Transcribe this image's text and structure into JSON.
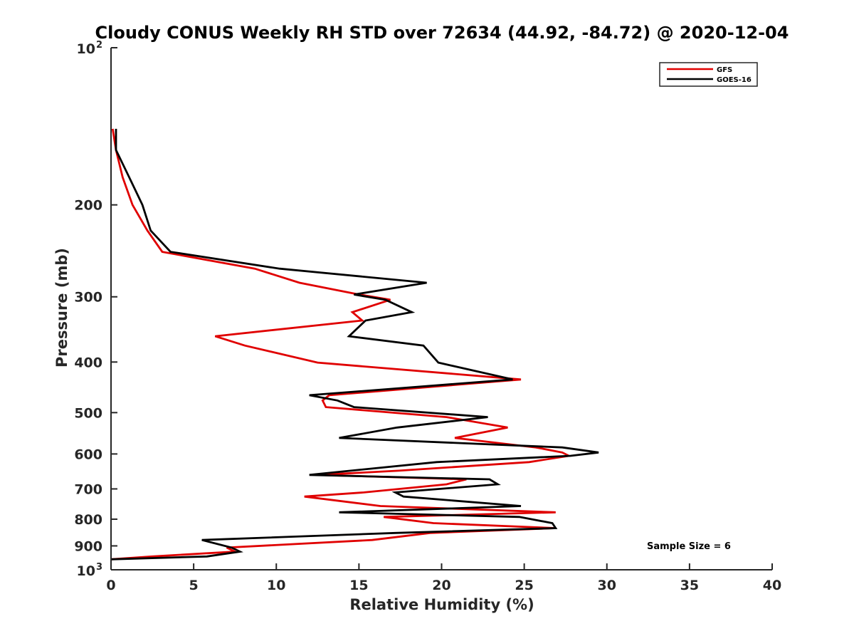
{
  "chart_data": {
    "type": "line",
    "title": "Cloudy CONUS Weekly RH STD over 72634 (44.92, -84.72) @ 2020-12-04",
    "xlabel": "Relative Humidity (%)",
    "ylabel": "Pressure (mb)",
    "xlim": [
      0,
      40
    ],
    "ylim": [
      100,
      1000
    ],
    "y_scale": "log",
    "y_reversed": true,
    "x_ticks": [
      "0",
      "5",
      "10",
      "15",
      "20",
      "25",
      "30",
      "35",
      "40"
    ],
    "y_ticks": [
      {
        "value": 100,
        "base": "10",
        "exp": "2"
      },
      {
        "value": 200,
        "label": "200"
      },
      {
        "value": 300,
        "label": "300"
      },
      {
        "value": 400,
        "label": "400"
      },
      {
        "value": 500,
        "label": "500"
      },
      {
        "value": 600,
        "label": "600"
      },
      {
        "value": 700,
        "label": "700"
      },
      {
        "value": 800,
        "label": "800"
      },
      {
        "value": 900,
        "label": "900"
      },
      {
        "value": 1000,
        "base": "10",
        "exp": "3"
      }
    ],
    "legend_position": "top-right",
    "annotation": "Sample Size = 6",
    "series": [
      {
        "name": "GFS",
        "color": "#e00000",
        "points": [
          [
            0.1,
            143
          ],
          [
            0.3,
            157
          ],
          [
            0.7,
            177
          ],
          [
            1.3,
            200
          ],
          [
            2.2,
            224
          ],
          [
            3.1,
            246
          ],
          [
            8.7,
            265
          ],
          [
            11.4,
            282
          ],
          [
            15.0,
            297
          ],
          [
            16.9,
            304
          ],
          [
            14.6,
            321
          ],
          [
            15.2,
            333
          ],
          [
            6.3,
            357
          ],
          [
            8.1,
            372
          ],
          [
            12.5,
            401
          ],
          [
            24.8,
            432
          ],
          [
            13.2,
            463
          ],
          [
            12.8,
            474
          ],
          [
            13.0,
            488
          ],
          [
            20.3,
            510
          ],
          [
            24.0,
            534
          ],
          [
            20.8,
            559
          ],
          [
            25.7,
            583
          ],
          [
            27.3,
            596
          ],
          [
            27.7,
            605
          ],
          [
            25.3,
            622
          ],
          [
            17.4,
            646
          ],
          [
            12.5,
            658
          ],
          [
            21.5,
            671
          ],
          [
            20.3,
            686
          ],
          [
            15.3,
            711
          ],
          [
            11.7,
            724
          ],
          [
            16.3,
            755
          ],
          [
            26.9,
            776
          ],
          [
            16.5,
            792
          ],
          [
            19.5,
            814
          ],
          [
            26.9,
            832
          ],
          [
            19.3,
            850
          ],
          [
            15.8,
            877
          ],
          [
            7.0,
            907
          ],
          [
            7.5,
            923
          ],
          [
            2.5,
            943
          ],
          [
            0.0,
            955
          ]
        ]
      },
      {
        "name": "GOES-16",
        "color": "#000000",
        "points": [
          [
            0.3,
            143
          ],
          [
            0.3,
            157
          ],
          [
            1.1,
            177
          ],
          [
            1.9,
            200
          ],
          [
            2.4,
            224
          ],
          [
            3.6,
            246
          ],
          [
            10.2,
            265
          ],
          [
            19.1,
            282
          ],
          [
            14.7,
            297
          ],
          [
            16.6,
            304
          ],
          [
            18.2,
            321
          ],
          [
            15.4,
            333
          ],
          [
            14.4,
            357
          ],
          [
            18.9,
            372
          ],
          [
            19.8,
            401
          ],
          [
            24.3,
            432
          ],
          [
            12.0,
            463
          ],
          [
            13.7,
            474
          ],
          [
            14.7,
            488
          ],
          [
            22.8,
            510
          ],
          [
            17.3,
            534
          ],
          [
            13.8,
            559
          ],
          [
            27.3,
            583
          ],
          [
            29.5,
            596
          ],
          [
            27.8,
            605
          ],
          [
            19.7,
            622
          ],
          [
            14.5,
            646
          ],
          [
            12.0,
            658
          ],
          [
            22.9,
            671
          ],
          [
            23.4,
            686
          ],
          [
            17.2,
            711
          ],
          [
            17.7,
            724
          ],
          [
            24.8,
            755
          ],
          [
            13.8,
            776
          ],
          [
            24.7,
            792
          ],
          [
            26.7,
            814
          ],
          [
            26.9,
            832
          ],
          [
            17.2,
            850
          ],
          [
            5.5,
            877
          ],
          [
            7.3,
            907
          ],
          [
            7.8,
            923
          ],
          [
            5.8,
            943
          ],
          [
            0.0,
            955
          ]
        ]
      }
    ]
  }
}
